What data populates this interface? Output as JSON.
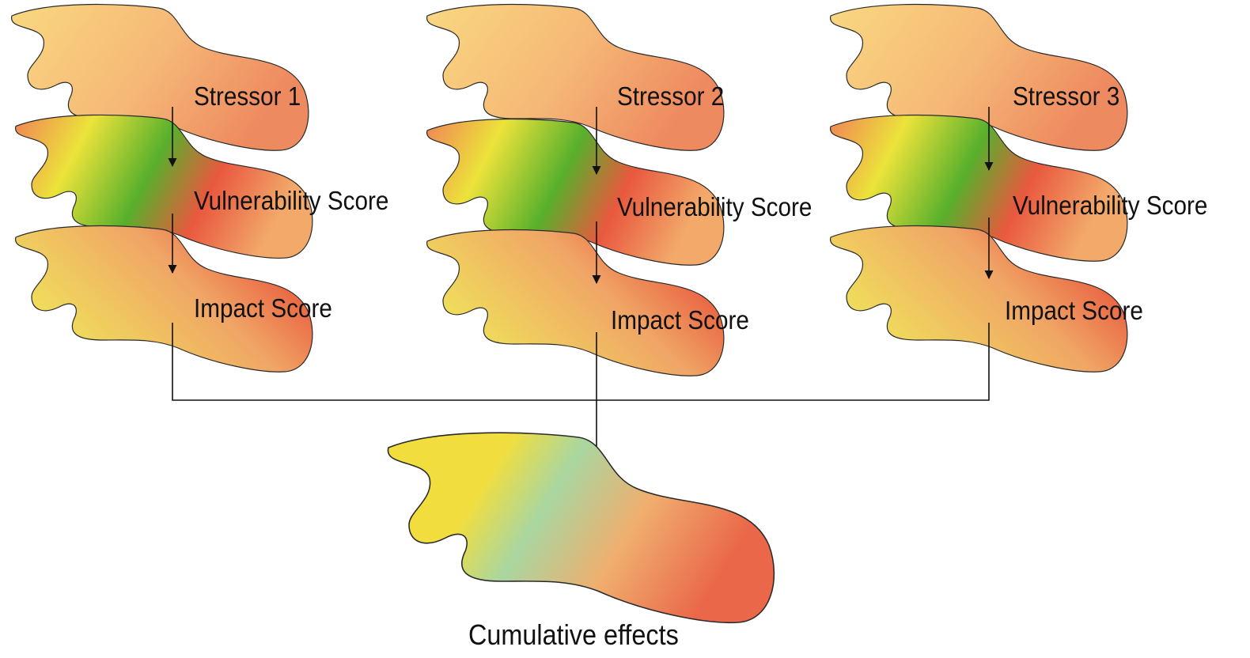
{
  "columns": [
    {
      "stressor_label": "Stressor 1",
      "vulnerability_label": "Vulnerability Score",
      "impact_label": "Impact Score"
    },
    {
      "stressor_label": "Stressor 2",
      "vulnerability_label": "Vulnerability Score",
      "impact_label": "Impact Score"
    },
    {
      "stressor_label": "Stressor 3",
      "vulnerability_label": "Vulnerability Score",
      "impact_label": "Impact Score"
    }
  ],
  "result_label": "Cumulative effects",
  "colors": {
    "stressor": [
      "#f9d880",
      "#f5b877",
      "#ee8a5f"
    ],
    "vulnerability": [
      "#f08456",
      "#ece33a",
      "#58b02c",
      "#e9583e",
      "#f2a96a"
    ],
    "impact": [
      "#efe55a",
      "#f0a566",
      "#e53a2b"
    ],
    "cumulative": [
      "#f1de3e",
      "#a9d6a0",
      "#f0ae6e",
      "#ea6749"
    ],
    "arrow": "#111111"
  }
}
